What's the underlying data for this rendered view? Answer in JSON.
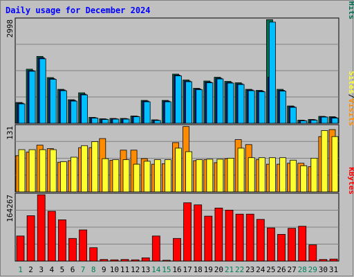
{
  "chart_data": {
    "type": "bar",
    "title": "Daily usage for December 2024",
    "categories": [
      "1",
      "2",
      "3",
      "4",
      "5",
      "6",
      "7",
      "8",
      "9",
      "10",
      "11",
      "12",
      "13",
      "14",
      "15",
      "16",
      "17",
      "18",
      "19",
      "20",
      "21",
      "22",
      "23",
      "24",
      "25",
      "26",
      "27",
      "28",
      "29",
      "30",
      "31"
    ],
    "weekend_days": [
      "1",
      "7",
      "8",
      "14",
      "15",
      "21",
      "22",
      "28",
      "29"
    ],
    "panels": [
      {
        "name": "hits-files-pages",
        "max_label": "2998",
        "ymax": 2998,
        "series": [
          {
            "name": "Hits",
            "color": "#006f51",
            "values": [
              600,
              1560,
              1930,
              1320,
              980,
              680,
              880,
              170,
              130,
              140,
              140,
              210,
              660,
              100,
              660,
              1420,
              1250,
              1010,
              1220,
              1330,
              1210,
              1170,
              980,
              950,
              2990,
              980,
              500,
              90,
              110,
              200,
              190
            ]
          },
          {
            "name": "Files",
            "color": "#001a9e",
            "values": [
              580,
              1520,
              1890,
              1290,
              960,
              660,
              840,
              160,
              120,
              130,
              130,
              200,
              640,
              90,
              640,
              1390,
              1220,
              990,
              1190,
              1300,
              1180,
              1140,
              960,
              930,
              1330,
              950,
              480,
              80,
              100,
              190,
              170
            ]
          },
          {
            "name": "Pages",
            "color": "#00bfff",
            "values": [
              560,
              1500,
              1860,
              1270,
              940,
              640,
              820,
              150,
              110,
              120,
              120,
              190,
              620,
              80,
              620,
              1370,
              1200,
              970,
              1170,
              1280,
              1160,
              1120,
              940,
              910,
              2920,
              930,
              460,
              70,
              90,
              180,
              150
            ]
          }
        ],
        "axis_title": [
          "Pages",
          "/",
          "Files",
          "/",
          "Hits"
        ]
      },
      {
        "name": "visits-sites",
        "max_label": "131",
        "ymax": 131,
        "series": [
          {
            "name": "Visits",
            "color": "#ff8c00",
            "values": [
              72,
              79,
              93,
              86,
              59,
              62,
              88,
              88,
              106,
              63,
              83,
              83,
              66,
              55,
              56,
              98,
              130,
              62,
              64,
              58,
              66,
              104,
              94,
              64,
              55,
              55,
              57,
              57,
              50,
              110,
              124
            ]
          },
          {
            "name": "Sites",
            "color": "#ffff30",
            "values": [
              84,
              84,
              84,
              84,
              60,
              69,
              92,
              100,
              66,
              64,
              64,
              55,
              61,
              64,
              64,
              87,
              80,
              64,
              65,
              65,
              67,
              87,
              68,
              68,
              68,
              68,
              63,
              52,
              67,
              122,
              110
            ]
          }
        ],
        "axis_title": [
          "Sites",
          "/",
          "Visits"
        ]
      },
      {
        "name": "kbytes",
        "max_label": "164267",
        "ymax": 164267,
        "series": [
          {
            "name": "KBytes",
            "color": "#ff0000",
            "values": [
              62000,
              112000,
              164000,
              123000,
              102000,
              56000,
              77000,
              33000,
              4000,
              3000,
              4000,
              3000,
              8000,
              62000,
              2000,
              56000,
              144000,
              139000,
              111000,
              131000,
              126000,
              116000,
              116000,
              103000,
              82000,
              66000,
              81000,
              86000,
              40000,
              4000,
              5000
            ]
          }
        ],
        "axis_title": [
          "KBytes"
        ]
      }
    ]
  }
}
